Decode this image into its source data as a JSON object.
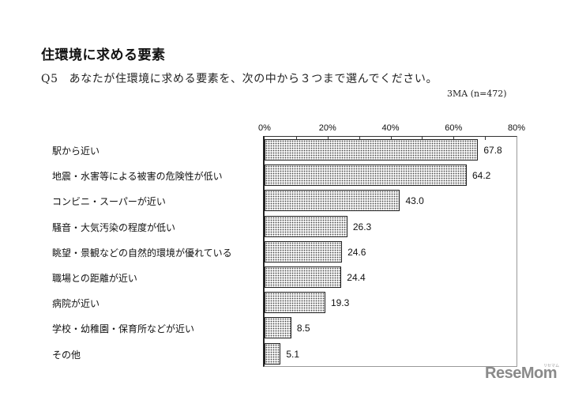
{
  "header": {
    "title": "住環境に求める要素",
    "question_no": "Q5",
    "question_text": "あなたが住環境に求める要素を、次の中から３つまで選んでください。",
    "note": "3MA (n=472)"
  },
  "chart_data": {
    "type": "bar",
    "orientation": "horizontal",
    "title": "住環境に求める要素",
    "subtitle": "Q5 あなたが住環境に求める要素を、次の中から３つまで選んでください。 3MA (n=472)",
    "xlabel": "",
    "ylabel": "",
    "xlim": [
      0,
      80
    ],
    "x_ticks": [
      "0%",
      "20%",
      "40%",
      "60%",
      "80%"
    ],
    "grid": false,
    "legend": null,
    "categories": [
      "駅から近い",
      "地震・水害等による被害の危険性が低い",
      "コンビニ・スーパーが近い",
      "騒音・大気汚染の程度が低い",
      "眺望・景観などの自然的環境が優れている",
      "職場との距離が近い",
      "病院が近い",
      "学校・幼稚園・保育所などが近い",
      "その他"
    ],
    "values": [
      67.8,
      64.2,
      43.0,
      26.3,
      24.6,
      24.4,
      19.3,
      8.5,
      5.1
    ],
    "value_labels": [
      "67.8",
      "64.2",
      "43.0",
      "26.3",
      "24.6",
      "24.4",
      "19.3",
      "8.5",
      "5.1"
    ]
  },
  "watermark": {
    "logo": "ReseMom",
    "logo_sub": "リセマム"
  }
}
